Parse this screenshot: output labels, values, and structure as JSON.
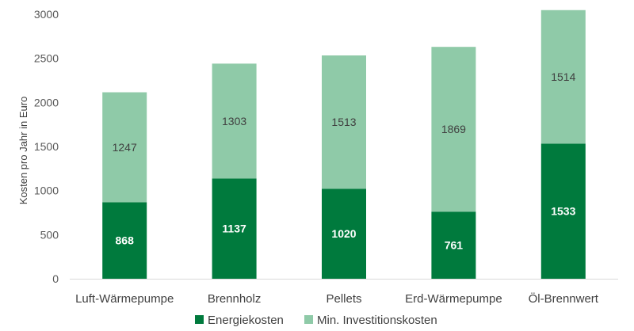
{
  "chart_data": {
    "type": "bar",
    "stacked": true,
    "categories": [
      "Luft-Wärmepumpe",
      "Brennholz",
      "Pellets",
      "Erd-Wärmepumpe",
      "Öl-Brennwert"
    ],
    "series": [
      {
        "name": "Energiekosten",
        "values": [
          868,
          1137,
          1020,
          761,
          1533
        ],
        "color": "#007a3d"
      },
      {
        "name": "Min. Investitionskosten",
        "values": [
          1247,
          1303,
          1513,
          1869,
          1514
        ],
        "color": "#8fcaa8"
      }
    ],
    "title": "",
    "xlabel": "",
    "ylabel": "Kosten pro Jahr in Euro",
    "ylim": [
      0,
      3000
    ],
    "yticks": [
      0,
      500,
      1000,
      1500,
      2000,
      2500,
      3000
    ],
    "grid": false,
    "legend_position": "bottom"
  }
}
